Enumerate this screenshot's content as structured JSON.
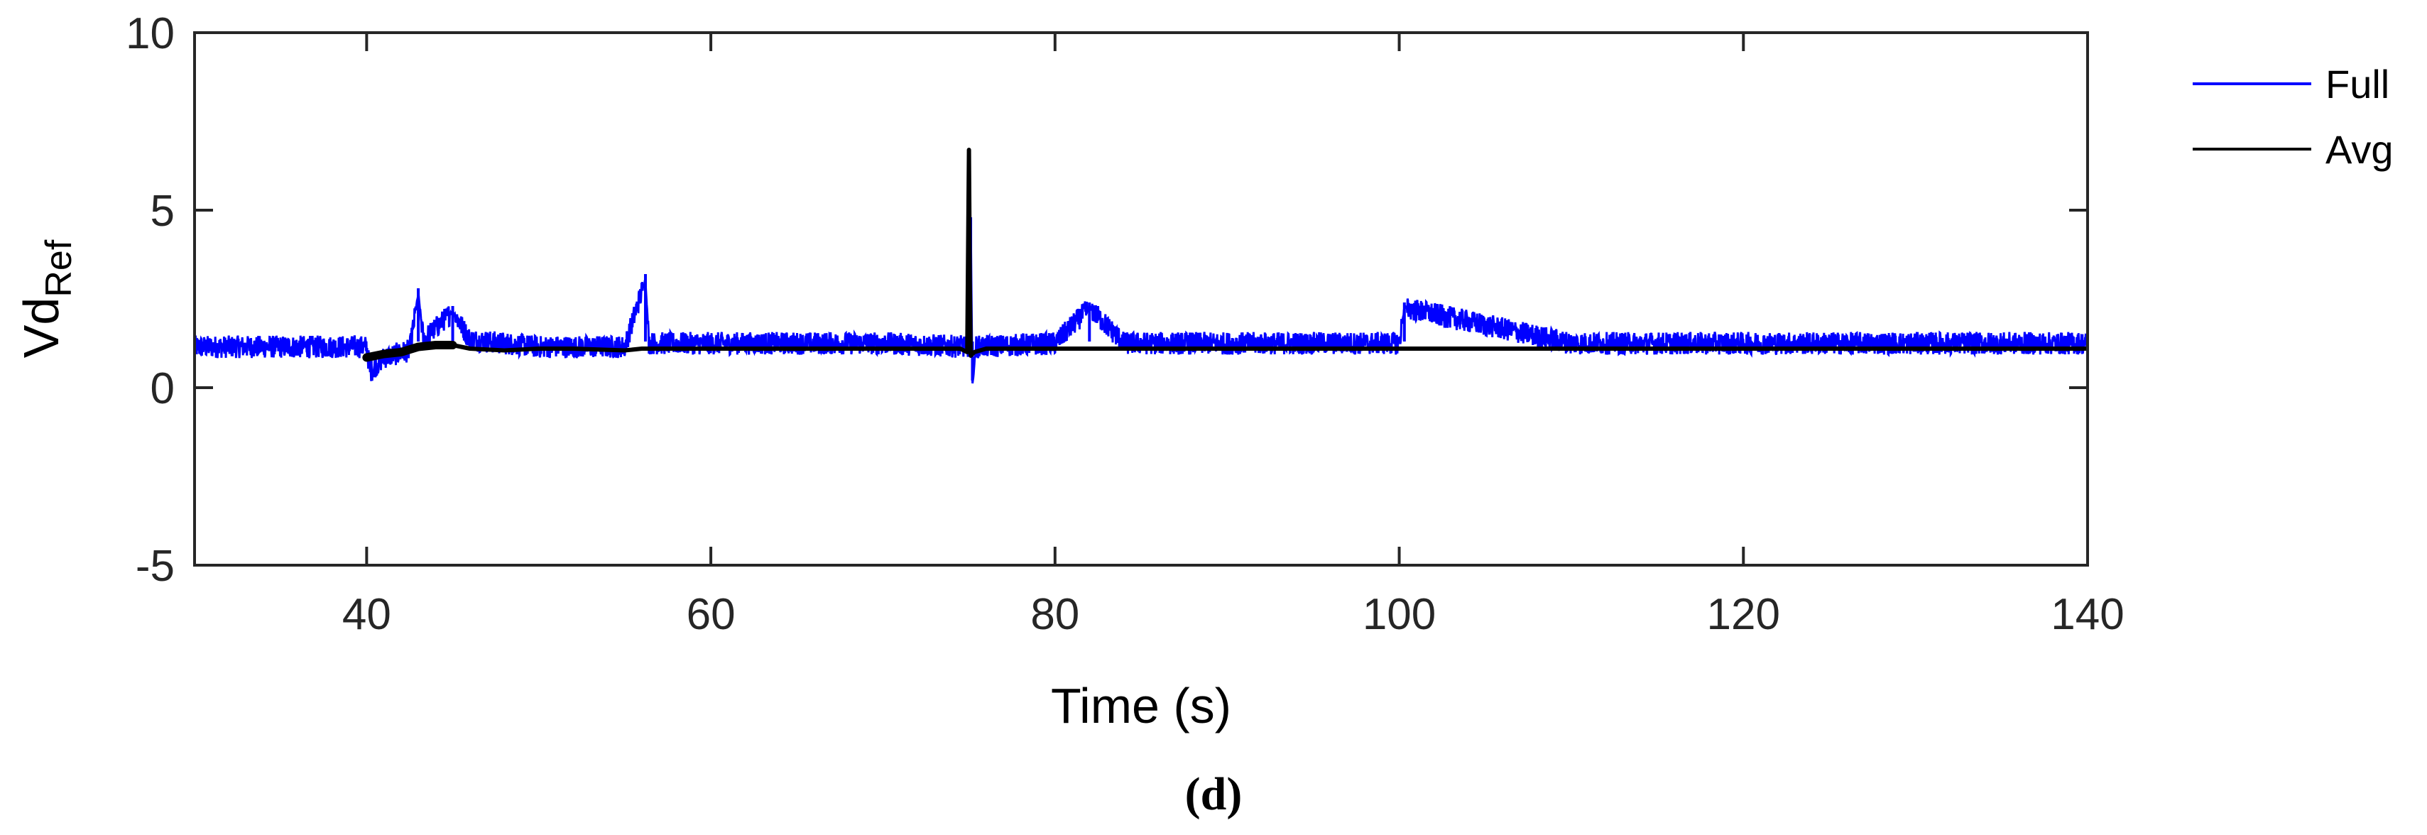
{
  "chart_data": {
    "type": "line",
    "title": "",
    "xlabel": "Time (s)",
    "ylabel_main": "Vd",
    "ylabel_sub": "Ref",
    "panel_label": "(d)",
    "xlim": [
      30,
      140
    ],
    "ylim": [
      -5,
      10
    ],
    "xticks": [
      40,
      60,
      80,
      100,
      120,
      140
    ],
    "yticks": [
      -5,
      0,
      5,
      10
    ],
    "xtick_labels": [
      "40",
      "60",
      "80",
      "100",
      "120",
      "140"
    ],
    "ytick_labels": [
      "-5",
      "0",
      "5",
      "10"
    ],
    "grid": false,
    "legend_position": "outside top-right",
    "series": [
      {
        "name": "Full",
        "color": "#0000FF",
        "noise_band": [
          0.75,
          1.8
        ],
        "keypoints": [
          [
            30,
            1.3
          ],
          [
            40,
            1.3
          ],
          [
            40.2,
            0.6
          ],
          [
            41,
            1.0
          ],
          [
            42.5,
            1.2
          ],
          [
            43,
            2.8
          ],
          [
            43.3,
            1.5
          ],
          [
            45,
            2.3
          ],
          [
            46,
            1.5
          ],
          [
            50,
            1.3
          ],
          [
            55,
            1.3
          ],
          [
            56.2,
            3.2
          ],
          [
            56.4,
            1.4
          ],
          [
            60,
            1.4
          ],
          [
            70,
            1.4
          ],
          [
            75,
            1.3
          ],
          [
            75.1,
            4.8
          ],
          [
            75.2,
            0.2
          ],
          [
            75.4,
            1.3
          ],
          [
            80,
            1.4
          ],
          [
            82,
            2.4
          ],
          [
            84,
            1.4
          ],
          [
            90,
            1.4
          ],
          [
            100,
            1.4
          ],
          [
            100.3,
            2.4
          ],
          [
            110,
            1.4
          ],
          [
            120,
            1.4
          ],
          [
            130,
            1.4
          ],
          [
            140,
            1.4
          ]
        ]
      },
      {
        "name": "Avg",
        "color": "#000000",
        "points": [
          [
            40,
            0.85
          ],
          [
            41,
            0.95
          ],
          [
            42,
            1.0
          ],
          [
            43,
            1.15
          ],
          [
            44,
            1.2
          ],
          [
            45,
            1.2
          ],
          [
            46,
            1.1
          ],
          [
            48,
            1.05
          ],
          [
            50,
            1.1
          ],
          [
            52,
            1.1
          ],
          [
            55,
            1.05
          ],
          [
            56,
            1.1
          ],
          [
            60,
            1.1
          ],
          [
            65,
            1.1
          ],
          [
            70,
            1.1
          ],
          [
            74.5,
            1.1
          ],
          [
            74.9,
            1.0
          ],
          [
            75.0,
            6.7
          ],
          [
            75.05,
            3.0
          ],
          [
            75.1,
            0.9
          ],
          [
            75.3,
            1.0
          ],
          [
            76,
            1.1
          ],
          [
            80,
            1.1
          ],
          [
            90,
            1.1
          ],
          [
            100,
            1.1
          ],
          [
            110,
            1.1
          ],
          [
            120,
            1.1
          ],
          [
            130,
            1.1
          ],
          [
            140,
            1.1
          ]
        ]
      }
    ]
  }
}
